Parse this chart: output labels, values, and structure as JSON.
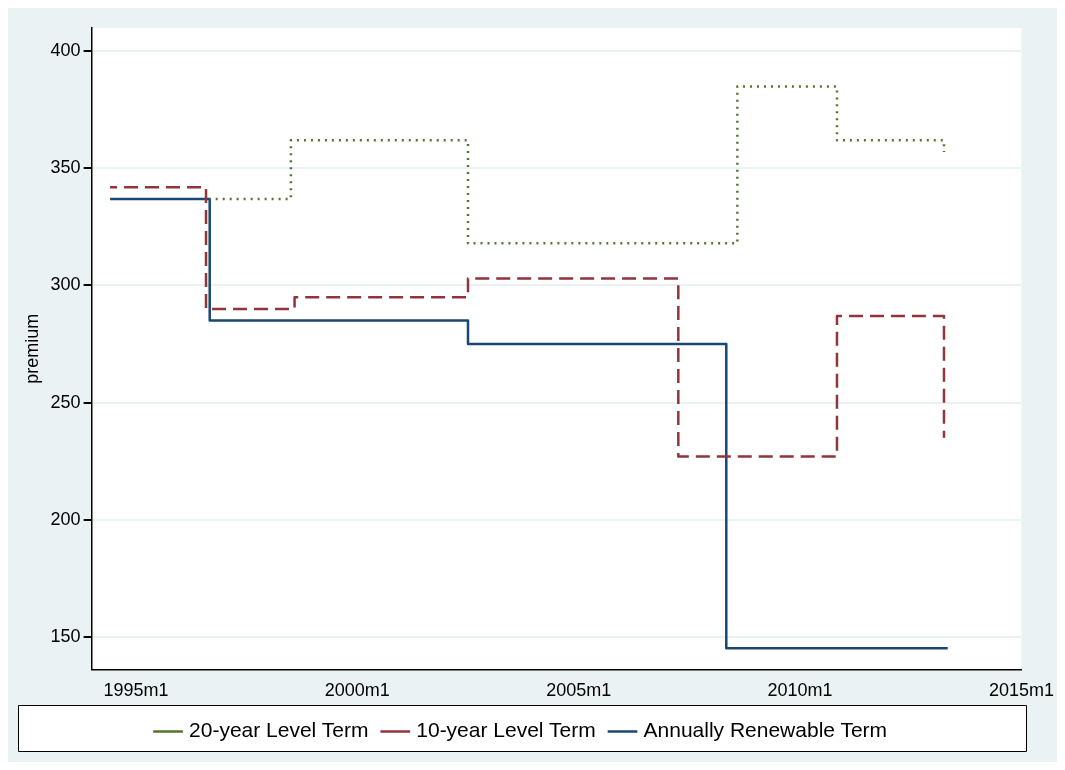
{
  "chart_data": {
    "type": "step",
    "ylabel": "premium",
    "xlim": [
      "1994-01",
      "2015-01"
    ],
    "xticks": [
      {
        "value": "1995-01",
        "label": "1995m1"
      },
      {
        "value": "2000-01",
        "label": "2000m1"
      },
      {
        "value": "2005-01",
        "label": "2005m1"
      },
      {
        "value": "2010-01",
        "label": "2010m1"
      },
      {
        "value": "2015-01",
        "label": "2015m1"
      }
    ],
    "ylim": [
      136,
      410
    ],
    "yticks": [
      150,
      200,
      250,
      300,
      350,
      400
    ],
    "grid": "y",
    "legend": "bottom",
    "marker": "none",
    "series": [
      {
        "name": "Annually Renewable Term",
        "color": "#1a476f",
        "line_style": "solid",
        "x": [
          "1994-06",
          "1996-09",
          "2002-07",
          "2008-05",
          "2013-05"
        ],
        "values": [
          337,
          285,
          275,
          145,
          145
        ]
      },
      {
        "name": "10-year Level Term",
        "color": "#90353b",
        "line_style": "dashed",
        "x": [
          "1994-06",
          "1996-08",
          "1998-08",
          "2002-07",
          "2007-04",
          "2010-11",
          "2013-04"
        ],
        "values": [
          342,
          290,
          295,
          303,
          227,
          287,
          235
        ]
      },
      {
        "name": "20-year Level Term",
        "color": "#55752f",
        "line_style": "dotted",
        "x": [
          "1996-09",
          "1998-07",
          "2002-07",
          "2008-08",
          "2010-11",
          "2013-04"
        ],
        "values": [
          337,
          362,
          318,
          385,
          362,
          357
        ]
      }
    ]
  }
}
